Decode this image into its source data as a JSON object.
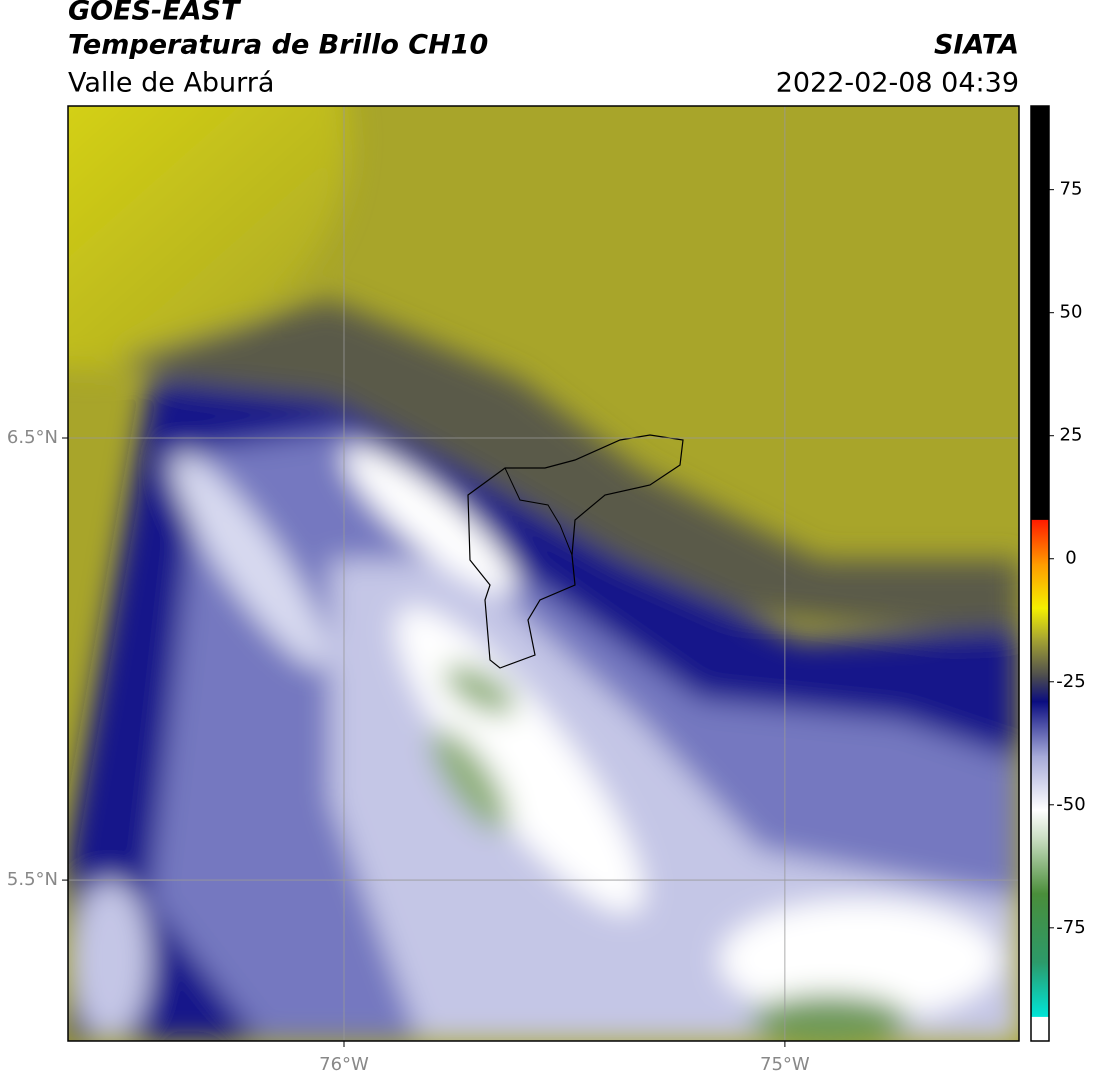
{
  "header": {
    "satellite": "GOES-EAST",
    "product": "Temperatura de Brillo CH10",
    "region": "Valle de Aburrá",
    "source": "SIATA",
    "datetime": "2022-02-08 04:39"
  },
  "map": {
    "xlim": [
      -76.626,
      -74.469
    ],
    "ylim": [
      5.136,
      7.251
    ],
    "xticks": [
      {
        "value": -76,
        "label": "76°W"
      },
      {
        "value": -75,
        "label": "75°W"
      }
    ],
    "yticks": [
      {
        "value": 6.5,
        "label": "6.5°N"
      },
      {
        "value": 5.5,
        "label": "5.5°N"
      }
    ],
    "grid": true
  },
  "colorbar": {
    "clim": [
      -98,
      92
    ],
    "ticks": [
      -75,
      -50,
      -25,
      0,
      25,
      50,
      75
    ],
    "stops": [
      {
        "value": -98,
        "color": "#ffffff"
      },
      {
        "value": -93,
        "color": "#ffffff"
      },
      {
        "value": -93,
        "color": "#00e5d8"
      },
      {
        "value": -82,
        "color": "#2c9a6a"
      },
      {
        "value": -68,
        "color": "#4a8e3a"
      },
      {
        "value": -57,
        "color": "#c8dcc0"
      },
      {
        "value": -51,
        "color": "#ffffff"
      },
      {
        "value": -40,
        "color": "#a4a8d8"
      },
      {
        "value": -29,
        "color": "#0a0c80"
      },
      {
        "value": -24,
        "color": "#4a4a50"
      },
      {
        "value": -16,
        "color": "#aaa830"
      },
      {
        "value": -10,
        "color": "#f4f000"
      },
      {
        "value": -1,
        "color": "#ff9a00"
      },
      {
        "value": 8,
        "color": "#ff1a00"
      },
      {
        "value": 8,
        "color": "#000000"
      },
      {
        "value": 92,
        "color": "#000000"
      }
    ]
  }
}
